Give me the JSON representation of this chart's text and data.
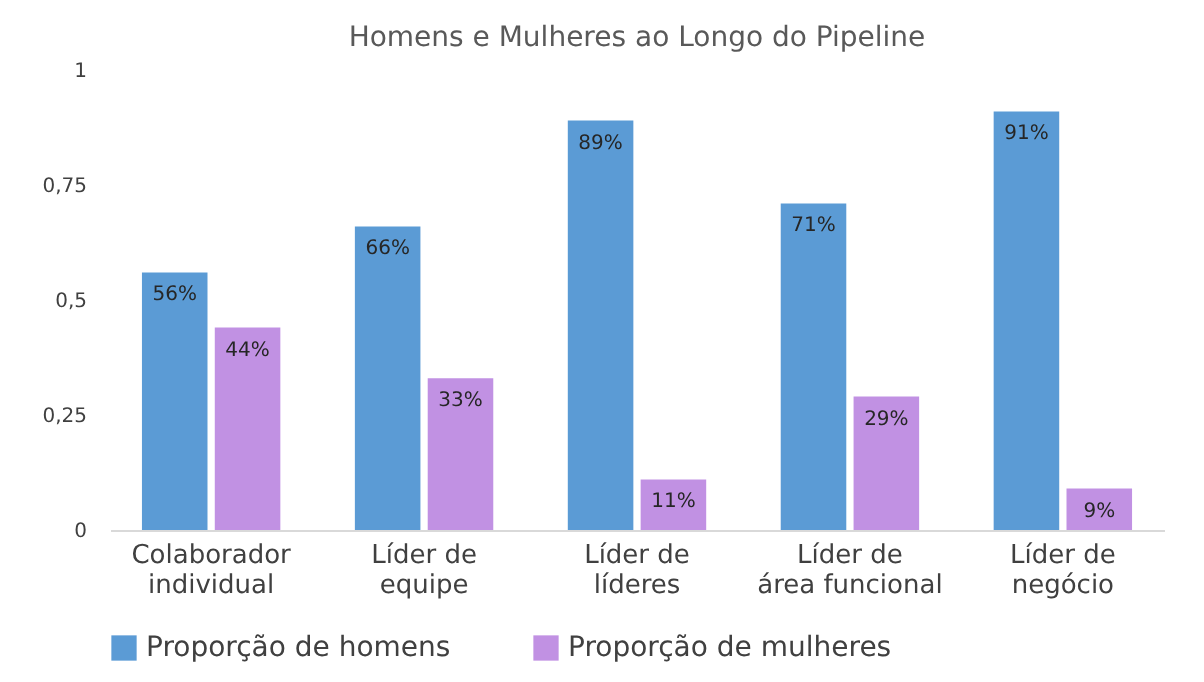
{
  "chart_data": {
    "type": "bar",
    "title": "Homens e Mulheres ao Longo do Pipeline",
    "categories": [
      "Colaborador\nindividual",
      "Líder de\nequipe",
      "Líder de\nlíderes",
      "Líder de\nárea funcional",
      "Líder de\nnegócio"
    ],
    "series": [
      {
        "name": "Proporção de homens",
        "color": "#5b9bd5",
        "values": [
          0.56,
          0.66,
          0.89,
          0.71,
          0.91
        ],
        "value_labels": [
          "56%",
          "66%",
          "89%",
          "71%",
          "91%"
        ]
      },
      {
        "name": "Proporção de mulheres",
        "color": "#c191e3",
        "values": [
          0.44,
          0.33,
          0.11,
          0.29,
          0.09
        ],
        "value_labels": [
          "44%",
          "33%",
          "11%",
          "29%",
          "9%"
        ]
      }
    ],
    "ylim": [
      0,
      1
    ],
    "yticks": [
      0,
      {
        "value": 0.25,
        "label": "0,25"
      },
      {
        "value": 0.5,
        "label": "0,5"
      },
      {
        "value": 0.75,
        "label": "0,75"
      },
      1
    ],
    "grid": false,
    "legend": "bottom"
  }
}
